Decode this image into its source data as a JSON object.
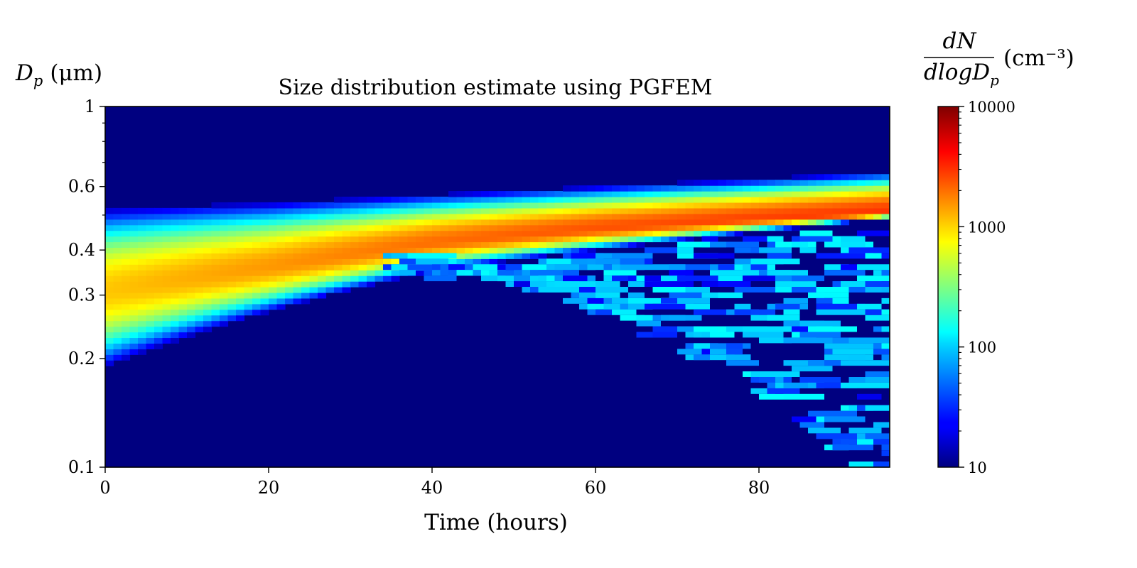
{
  "chart_data": {
    "type": "heatmap",
    "title": "Size distribution estimate using PGFEM",
    "xlabel": "Time (hours)",
    "ylabel": "D_p (μm)",
    "ylabel_parts": {
      "main": "D",
      "sub": "p",
      "unit": "(μm)"
    },
    "x_range": [
      0,
      96
    ],
    "x_ticks": [
      0,
      20,
      40,
      60,
      80
    ],
    "y_scale": "log",
    "y_range": [
      0.1,
      1
    ],
    "y_ticks": [
      {
        "value": 0.1,
        "label": "0.1"
      },
      {
        "value": 0.2,
        "label": "0.2"
      },
      {
        "value": 0.3,
        "label": "0.3"
      },
      {
        "value": 0.4,
        "label": "0.4"
      },
      {
        "value": 0.6,
        "label": "0.6"
      },
      {
        "value": 1.0,
        "label": "1"
      }
    ],
    "colorbar": {
      "label_numerator": "dN",
      "label_denominator": "dlogD_p",
      "label_denominator_parts": {
        "main": "dlogD",
        "sub": "p"
      },
      "label_unit": "(cm⁻³)",
      "colormap": "jet",
      "scale": "log",
      "range": [
        10,
        10000
      ],
      "ticks": [
        {
          "value": 10,
          "label": "10"
        },
        {
          "value": 100,
          "label": "100"
        },
        {
          "value": 1000,
          "label": "1000"
        },
        {
          "value": 10000,
          "label": "10000"
        }
      ]
    },
    "main_mode": {
      "description_values": "peak concentration ridge",
      "points": [
        {
          "t": 0,
          "dp_center": 0.31,
          "dp_low": 0.19,
          "dp_high": 0.52,
          "peak": 1100
        },
        {
          "t": 20,
          "dp_center": 0.36,
          "dp_low": 0.27,
          "dp_high": 0.54,
          "peak": 1500
        },
        {
          "t": 40,
          "dp_center": 0.42,
          "dp_low": 0.35,
          "dp_high": 0.57,
          "peak": 2000
        },
        {
          "t": 60,
          "dp_center": 0.46,
          "dp_low": 0.4,
          "dp_high": 0.6,
          "peak": 2400
        },
        {
          "t": 80,
          "dp_center": 0.49,
          "dp_low": 0.45,
          "dp_high": 0.63,
          "peak": 2700
        },
        {
          "t": 96,
          "dp_center": 0.51,
          "dp_low": 0.49,
          "dp_high": 0.66,
          "peak": 3000
        }
      ]
    },
    "background_value": 10
  }
}
